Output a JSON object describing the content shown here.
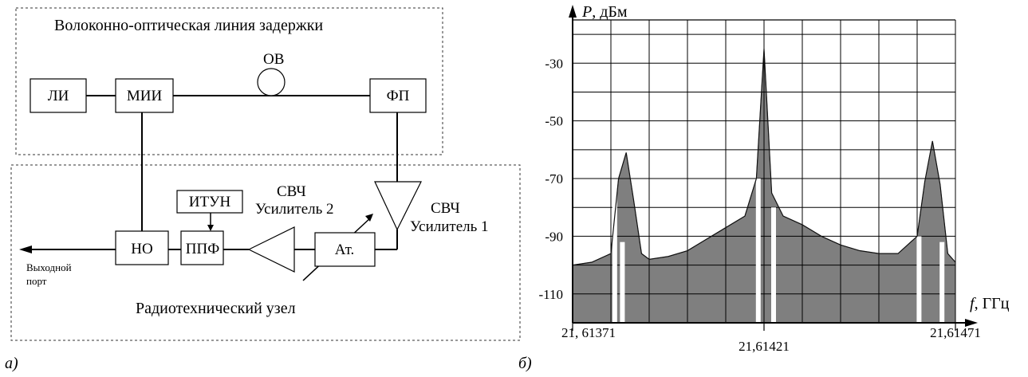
{
  "diagram": {
    "panel_label": "а)",
    "optical_group_title": "Волоконно-оптическая линия задержки",
    "radio_group_title": "Радиотехнический узел",
    "blocks": {
      "li": "ЛИ",
      "mii": "МИИ",
      "fp": "ФП",
      "itun": "ИТУН",
      "no": "НО",
      "ppf": "ППФ",
      "at": "Ат."
    },
    "fiber_label": "ОВ",
    "amp1_label": [
      "СВЧ",
      "Усилитель 1"
    ],
    "amp2_label": [
      "СВЧ",
      "Усилитель 2"
    ],
    "output_port_label": [
      "Выходной",
      "порт"
    ]
  },
  "chart_data": {
    "type": "area",
    "panel_label": "б)",
    "ylabel_symbol": "P",
    "ylabel_unit": ", дБм",
    "xlabel_symbol": "f",
    "xlabel_unit": ", ГГц",
    "ylim": [
      -120,
      -15
    ],
    "xlim": [
      21.61371,
      21.61471
    ],
    "y_ticks": [
      -30,
      -50,
      -70,
      -90,
      -110
    ],
    "x_tick_labels": [
      "21, 61371",
      "21,61421",
      "21,61471"
    ],
    "x_tick_values": [
      21.61371,
      21.61421,
      21.61471
    ],
    "grid": true,
    "series": [
      {
        "fill": "#7f7f7f",
        "x": [
          21.61371,
          21.61376,
          21.61381,
          21.61383,
          21.61385,
          21.61387,
          21.61389,
          21.61391,
          21.61396,
          21.61401,
          21.61406,
          21.61411,
          21.61416,
          21.61419,
          21.61421,
          21.61423,
          21.61426,
          21.61431,
          21.61436,
          21.61441,
          21.61446,
          21.61451,
          21.61456,
          21.61461,
          21.61463,
          21.61465,
          21.61467,
          21.61469,
          21.61471
        ],
        "values": [
          -100,
          -99,
          -96,
          -70,
          -61,
          -78,
          -96,
          -98,
          -97,
          -95,
          -91,
          -87,
          -83,
          -70,
          -25,
          -75,
          -83,
          -86,
          -90,
          -93,
          -95,
          -96,
          -96,
          -90,
          -71,
          -57,
          -72,
          -96,
          -99
        ]
      }
    ]
  }
}
